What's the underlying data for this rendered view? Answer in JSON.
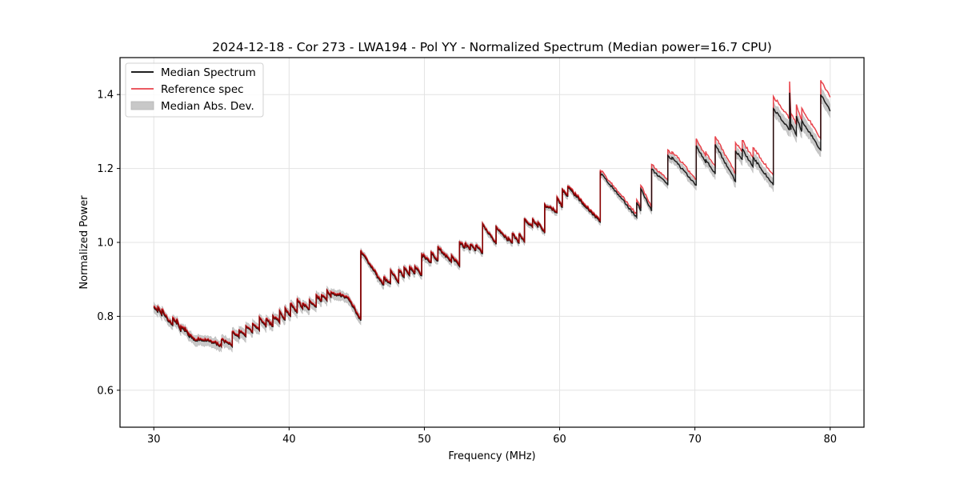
{
  "chart_data": {
    "type": "line",
    "title": "2024-12-18 - Cor 273 - LWA194 - Pol YY - Normalized Spectrum (Median power=16.7 CPU)",
    "xlabel": "Frequency (MHz)",
    "ylabel": "Normalized Power",
    "xlim": [
      27.5,
      82.5
    ],
    "ylim": [
      0.5,
      1.5
    ],
    "xticks": [
      30,
      40,
      50,
      60,
      70,
      80
    ],
    "xtick_labels": [
      "30",
      "40",
      "50",
      "60",
      "70",
      "80"
    ],
    "yticks": [
      0.6,
      0.8,
      1.0,
      1.2,
      1.4
    ],
    "ytick_labels": [
      "0.6",
      "0.8",
      "1.0",
      "1.2",
      "1.4"
    ],
    "grid": true,
    "legend": {
      "placement": "top-left",
      "entries": [
        {
          "label": "Median Spectrum",
          "kind": "line",
          "color": "#000000"
        },
        {
          "label": "Reference spec",
          "kind": "line",
          "color": "#e8434b"
        },
        {
          "label": "Median Abs. Dev.",
          "kind": "band",
          "color": "#c8c8c8"
        }
      ]
    },
    "series_note": "Sawtooth segments: each segment [f_start, f_end, median_start, median_end, ref_offset, mad_halfwidth]",
    "segments": [
      [
        30.0,
        30.3,
        0.825,
        0.81,
        0.006,
        0.012
      ],
      [
        30.3,
        30.6,
        0.822,
        0.8,
        0.006,
        0.012
      ],
      [
        30.6,
        31.0,
        0.815,
        0.792,
        0.005,
        0.012
      ],
      [
        31.0,
        31.4,
        0.79,
        0.775,
        0.005,
        0.012
      ],
      [
        31.4,
        31.7,
        0.792,
        0.778,
        0.005,
        0.012
      ],
      [
        31.7,
        32.0,
        0.79,
        0.758,
        0.005,
        0.012
      ],
      [
        32.0,
        32.3,
        0.77,
        0.758,
        0.005,
        0.012
      ],
      [
        32.3,
        32.6,
        0.768,
        0.745,
        0.005,
        0.012
      ],
      [
        32.6,
        33.0,
        0.75,
        0.735,
        0.005,
        0.012
      ],
      [
        33.0,
        33.8,
        0.736,
        0.734,
        0.004,
        0.013
      ],
      [
        33.8,
        34.5,
        0.735,
        0.728,
        0.004,
        0.013
      ],
      [
        34.5,
        35.0,
        0.728,
        0.718,
        0.004,
        0.014
      ],
      [
        35.0,
        35.6,
        0.735,
        0.725,
        0.004,
        0.014
      ],
      [
        35.6,
        35.8,
        0.728,
        0.718,
        0.004,
        0.014
      ],
      [
        35.8,
        36.3,
        0.755,
        0.742,
        0.004,
        0.014
      ],
      [
        36.3,
        36.8,
        0.76,
        0.745,
        0.004,
        0.014
      ],
      [
        36.8,
        37.3,
        0.772,
        0.755,
        0.004,
        0.013
      ],
      [
        37.3,
        37.8,
        0.778,
        0.762,
        0.004,
        0.013
      ],
      [
        37.8,
        38.3,
        0.795,
        0.77,
        0.004,
        0.013
      ],
      [
        38.3,
        38.8,
        0.79,
        0.772,
        0.004,
        0.013
      ],
      [
        38.8,
        39.3,
        0.8,
        0.782,
        0.004,
        0.013
      ],
      [
        39.3,
        39.7,
        0.812,
        0.79,
        0.004,
        0.013
      ],
      [
        39.7,
        40.1,
        0.82,
        0.8,
        0.004,
        0.013
      ],
      [
        40.1,
        40.6,
        0.832,
        0.808,
        0.004,
        0.013
      ],
      [
        40.6,
        41.0,
        0.845,
        0.82,
        0.004,
        0.013
      ],
      [
        41.0,
        41.5,
        0.832,
        0.818,
        0.004,
        0.013
      ],
      [
        41.5,
        42.0,
        0.842,
        0.825,
        0.004,
        0.013
      ],
      [
        42.0,
        42.4,
        0.855,
        0.84,
        0.004,
        0.013
      ],
      [
        42.4,
        42.8,
        0.855,
        0.842,
        0.004,
        0.013
      ],
      [
        42.8,
        43.1,
        0.868,
        0.85,
        0.004,
        0.013
      ],
      [
        43.1,
        43.8,
        0.862,
        0.855,
        0.004,
        0.013
      ],
      [
        43.8,
        44.4,
        0.858,
        0.845,
        0.004,
        0.013
      ],
      [
        44.4,
        45.3,
        0.845,
        0.788,
        0.006,
        0.012
      ],
      [
        45.3,
        46.5,
        0.975,
        0.91,
        0.005,
        0.01
      ],
      [
        46.5,
        47.0,
        0.905,
        0.885,
        0.005,
        0.01
      ],
      [
        47.0,
        47.5,
        0.902,
        0.888,
        0.005,
        0.01
      ],
      [
        47.5,
        48.1,
        0.922,
        0.89,
        0.005,
        0.01
      ],
      [
        48.1,
        48.5,
        0.925,
        0.905,
        0.005,
        0.01
      ],
      [
        48.5,
        48.9,
        0.93,
        0.91,
        0.005,
        0.01
      ],
      [
        48.9,
        49.3,
        0.932,
        0.915,
        0.005,
        0.01
      ],
      [
        49.3,
        49.8,
        0.932,
        0.91,
        0.005,
        0.01
      ],
      [
        49.8,
        50.5,
        0.965,
        0.945,
        0.005,
        0.01
      ],
      [
        50.5,
        51.0,
        0.97,
        0.95,
        0.005,
        0.01
      ],
      [
        51.0,
        52.0,
        0.985,
        0.945,
        0.005,
        0.01
      ],
      [
        52.0,
        52.6,
        0.962,
        0.935,
        0.005,
        0.01
      ],
      [
        52.6,
        53.0,
        0.998,
        0.985,
        0.005,
        0.009
      ],
      [
        53.0,
        53.4,
        0.995,
        0.98,
        0.004,
        0.009
      ],
      [
        53.4,
        53.8,
        0.992,
        0.978,
        0.004,
        0.009
      ],
      [
        53.8,
        54.3,
        0.99,
        0.97,
        0.004,
        0.009
      ],
      [
        54.3,
        55.3,
        1.048,
        0.995,
        0.004,
        0.008
      ],
      [
        55.3,
        56.2,
        1.04,
        1.005,
        0.004,
        0.008
      ],
      [
        56.2,
        56.5,
        1.01,
        0.998,
        0.004,
        0.008
      ],
      [
        56.5,
        57.0,
        1.022,
        0.998,
        0.004,
        0.008
      ],
      [
        57.0,
        57.4,
        1.02,
        1.0,
        0.004,
        0.008
      ],
      [
        57.4,
        58.0,
        1.062,
        1.04,
        0.004,
        0.008
      ],
      [
        58.0,
        58.4,
        1.06,
        1.04,
        0.004,
        0.008
      ],
      [
        58.4,
        58.9,
        1.052,
        1.025,
        0.004,
        0.008
      ],
      [
        58.9,
        59.8,
        1.1,
        1.08,
        0.004,
        0.008
      ],
      [
        59.8,
        60.2,
        1.118,
        1.095,
        0.005,
        0.008
      ],
      [
        60.2,
        60.6,
        1.14,
        1.125,
        0.005,
        0.008
      ],
      [
        60.6,
        63.0,
        1.148,
        1.055,
        0.006,
        0.008
      ],
      [
        63.0,
        65.7,
        1.188,
        1.068,
        0.008,
        0.009
      ],
      [
        65.7,
        66.0,
        1.108,
        1.085,
        0.008,
        0.009
      ],
      [
        66.0,
        66.8,
        1.145,
        1.085,
        0.01,
        0.01
      ],
      [
        66.8,
        68.0,
        1.198,
        1.155,
        0.012,
        0.01
      ],
      [
        68.0,
        68.3,
        1.235,
        1.225,
        0.015,
        0.011
      ],
      [
        68.3,
        70.1,
        1.23,
        1.155,
        0.016,
        0.012
      ],
      [
        70.1,
        70.8,
        1.262,
        1.215,
        0.018,
        0.013
      ],
      [
        70.8,
        71.5,
        1.225,
        1.185,
        0.02,
        0.014
      ],
      [
        71.5,
        73.0,
        1.265,
        1.165,
        0.022,
        0.015
      ],
      [
        73.0,
        73.5,
        1.248,
        1.225,
        0.022,
        0.015
      ],
      [
        73.5,
        74.3,
        1.252,
        1.205,
        0.024,
        0.015
      ],
      [
        74.3,
        75.8,
        1.23,
        1.155,
        0.026,
        0.016
      ],
      [
        75.8,
        77.0,
        1.362,
        1.305,
        0.032,
        0.018
      ],
      [
        77.0,
        77.1,
        1.405,
        1.305,
        0.03,
        0.018
      ],
      [
        77.1,
        77.5,
        1.32,
        1.29,
        0.03,
        0.018
      ],
      [
        77.5,
        77.9,
        1.342,
        1.3,
        0.03,
        0.018
      ],
      [
        77.9,
        79.3,
        1.33,
        1.25,
        0.032,
        0.019
      ],
      [
        79.3,
        80.0,
        1.4,
        1.355,
        0.038,
        0.02
      ]
    ]
  }
}
